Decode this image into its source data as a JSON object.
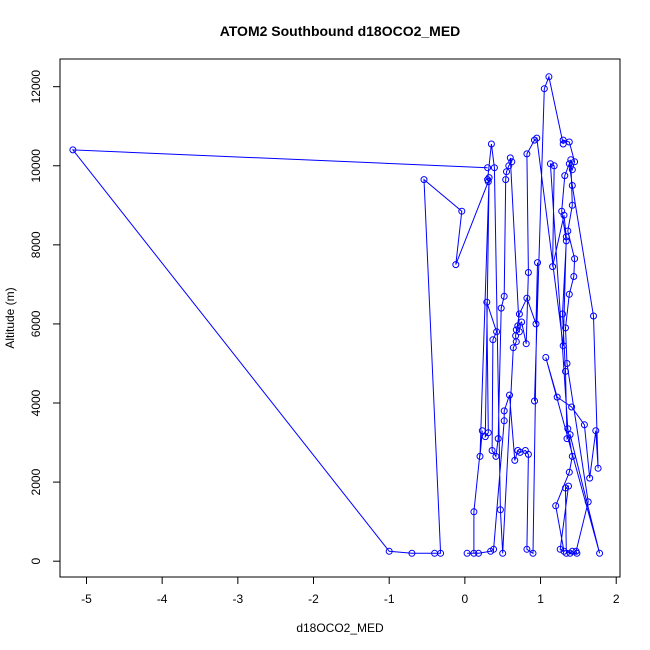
{
  "chart_data": {
    "type": "line",
    "title": "ATOM2 Southbound d18OCO2_MED",
    "xlabel": "d18OCO2_MED",
    "ylabel": "Altitude (m)",
    "xlim": [
      -5.35,
      2.05
    ],
    "ylim": [
      -400,
      12700
    ],
    "xticks": [
      -5,
      -4,
      -3,
      -2,
      -1,
      0,
      1,
      2
    ],
    "yticks": [
      0,
      2000,
      4000,
      6000,
      8000,
      10000,
      12000
    ],
    "grid": false,
    "color": "#0000ff",
    "marker": "open-circle",
    "series": [
      {
        "x": [
          0.92,
          1.05,
          1.11,
          1.3,
          1.3,
          1.38,
          1.45,
          1.42,
          1.38,
          1.42,
          1.7,
          1.76,
          1.73,
          1.65,
          1.58,
          1.41,
          1.22,
          1.07,
          1.78,
          1.39,
          1.35,
          1.33,
          1.29,
          1.34,
          1.28,
          1.32,
          1.4,
          1.42,
          1.36,
          1.45,
          1.44,
          1.38,
          1.33,
          1.35,
          1.63,
          1.47,
          1.48,
          1.39,
          1.42,
          1.34,
          1.33,
          1.37,
          1.26,
          1.31,
          1.2,
          1.38,
          1.42,
          1.36,
          1.13,
          1.18,
          1.16,
          1.31,
          1.34,
          1.3,
          0.95,
          0.92,
          0.82,
          0.84,
          0.81,
          0.75,
          0.7,
          0.68,
          0.72,
          0.6,
          0.62,
          0.58,
          0.55,
          0.54,
          0.52,
          0.48,
          0.44,
          0.41,
          0.36,
          0.37,
          0.42,
          0.29,
          0.31,
          0.27,
          0.32,
          0.2,
          0.23,
          0.12,
          0.12,
          0.03,
          0.18,
          0.34,
          0.38,
          0.52,
          0.52,
          0.59,
          0.66,
          0.7,
          0.73,
          0.8,
          0.84,
          0.82,
          0.9,
          0.96,
          0.94,
          0.82,
          0.72,
          0.67,
          0.68,
          0.64,
          0.5,
          0.47,
          0.39,
          0.35,
          0.3,
          0.31,
          -0.12,
          -0.04,
          -0.54,
          -0.32,
          -0.4,
          -0.7,
          -1.0,
          -5.18,
          0.3
        ],
        "y": [
          4050,
          11950,
          12250,
          10550,
          10650,
          10600,
          10100,
          9900,
          10050,
          9500,
          6200,
          2350,
          3300,
          2100,
          3450,
          3900,
          4150,
          5150,
          200,
          3200,
          3100,
          4800,
          6250,
          8100,
          8850,
          9750,
          10150,
          9000,
          8350,
          7650,
          7200,
          6750,
          5900,
          5000,
          1500,
          250,
          200,
          200,
          250,
          200,
          1850,
          1900,
          300,
          250,
          1400,
          2250,
          2650,
          3350,
          10050,
          10000,
          7450,
          8750,
          8200,
          5450,
          10700,
          10650,
          10300,
          7300,
          5500,
          6050,
          5950,
          5850,
          5800,
          10200,
          10100,
          10000,
          9850,
          9650,
          6700,
          6400,
          3100,
          2650,
          2800,
          5600,
          5800,
          6550,
          3250,
          3150,
          9700,
          2650,
          3300,
          1250,
          200,
          200,
          200,
          250,
          300,
          3550,
          3800,
          4200,
          2550,
          2800,
          2750,
          2800,
          2700,
          300,
          200,
          7550,
          6000,
          6650,
          6250,
          5700,
          5550,
          5400,
          200,
          1300,
          9950,
          10550,
          9650,
          9600,
          7500,
          8850,
          9650,
          200,
          200,
          200,
          250,
          10400,
          9950
        ]
      }
    ]
  }
}
